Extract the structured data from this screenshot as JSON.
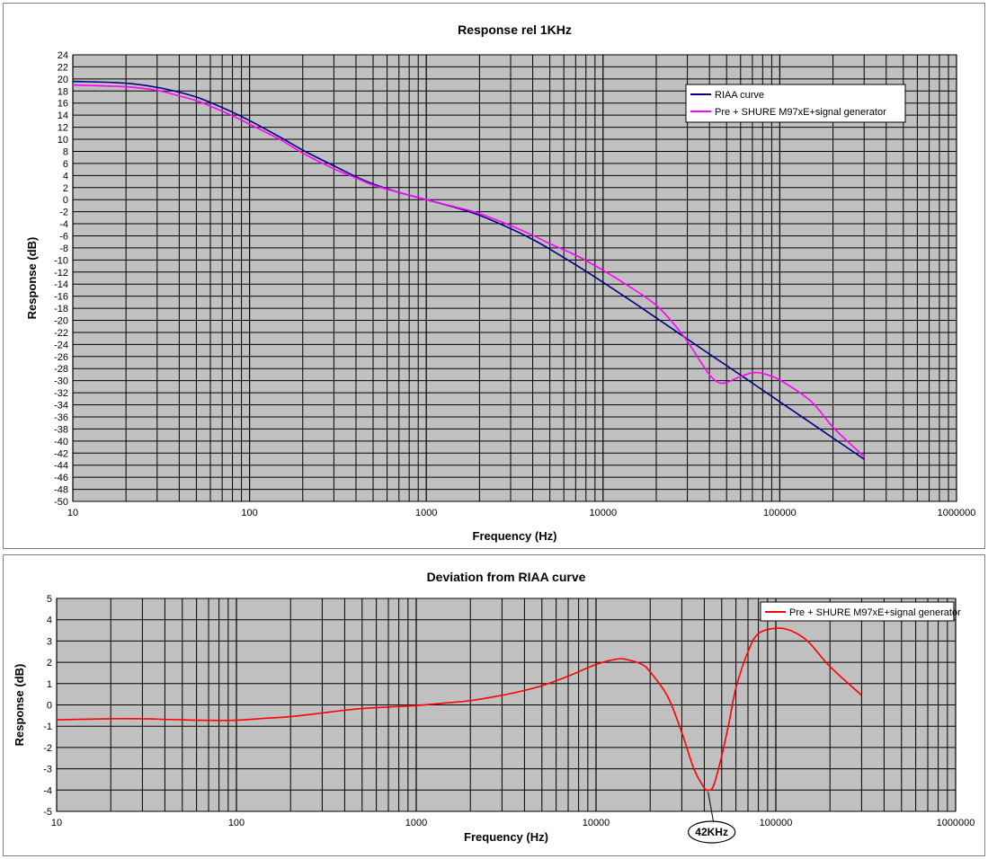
{
  "chart_data": [
    {
      "type": "line",
      "title": "Response rel 1KHz",
      "xlabel": "Frequency (Hz)",
      "ylabel": "Response (dB)",
      "xscale": "log",
      "xlim": [
        10,
        1000000
      ],
      "ylim": [
        -50,
        24
      ],
      "ystep": 2,
      "x_ticks": [
        10,
        100,
        1000,
        10000,
        100000,
        1000000
      ],
      "x_tick_labels": [
        "10",
        "100",
        "1000",
        "10000",
        "100000",
        "1000000"
      ],
      "grid": true,
      "legend_position": "top-right",
      "series": [
        {
          "name": "RIAA curve",
          "color": "#000080",
          "x": [
            10,
            20,
            30,
            40,
            50,
            60,
            80,
            100,
            150,
            200,
            300,
            400,
            500,
            700,
            1000,
            1500,
            2000,
            3000,
            4000,
            5000,
            7000,
            10000,
            15000,
            20000,
            30000,
            40000,
            50000,
            70000,
            100000,
            150000,
            200000,
            300000
          ],
          "y": [
            19.6,
            19.3,
            18.6,
            17.8,
            17.0,
            16.1,
            14.5,
            13.1,
            10.3,
            8.2,
            5.6,
            3.8,
            2.6,
            1.2,
            0.0,
            -1.4,
            -2.6,
            -4.8,
            -6.6,
            -8.2,
            -10.8,
            -13.7,
            -17.1,
            -19.6,
            -23.1,
            -25.6,
            -27.5,
            -30.4,
            -33.5,
            -37.0,
            -39.5,
            -43.0
          ]
        },
        {
          "name": "Pre + SHURE M97xE+signal generator",
          "color": "#ff00ff",
          "x": [
            10,
            20,
            30,
            40,
            50,
            60,
            80,
            100,
            150,
            200,
            300,
            400,
            500,
            700,
            1000,
            1500,
            2000,
            3000,
            4000,
            5000,
            7000,
            10000,
            15000,
            20000,
            25000,
            30000,
            35000,
            40000,
            45000,
            50000,
            60000,
            70000,
            80000,
            100000,
            150000,
            200000,
            300000
          ],
          "y": [
            19.0,
            18.7,
            18.1,
            17.2,
            16.4,
            15.5,
            13.9,
            12.5,
            9.9,
            7.7,
            5.1,
            3.6,
            2.4,
            1.2,
            0.0,
            -1.3,
            -2.3,
            -4.3,
            -5.9,
            -7.3,
            -9.2,
            -11.7,
            -14.9,
            -17.5,
            -20.5,
            -23.5,
            -26.5,
            -29.0,
            -30.3,
            -30.3,
            -29.3,
            -28.7,
            -28.8,
            -29.9,
            -33.4,
            -37.7,
            -42.6
          ]
        }
      ]
    },
    {
      "type": "line",
      "title": "Deviation from RIAA curve",
      "xlabel": "Frequency (Hz)",
      "ylabel": "Response (dB)",
      "xscale": "log",
      "xlim": [
        10,
        1000000
      ],
      "ylim": [
        -5,
        5
      ],
      "ystep": 1,
      "x_ticks": [
        10,
        100,
        1000,
        10000,
        100000,
        1000000
      ],
      "x_tick_labels": [
        "10",
        "100",
        "1000",
        "10000",
        "100000",
        "1000000"
      ],
      "grid": true,
      "legend_position": "top-right",
      "annotations": [
        {
          "text": "42KHz",
          "x": 42000,
          "y": -4.0
        }
      ],
      "series": [
        {
          "name": "Pre + SHURE M97xE+signal generator",
          "color": "#ff0000",
          "x": [
            10,
            20,
            30,
            40,
            50,
            60,
            80,
            100,
            150,
            200,
            300,
            400,
            500,
            700,
            1000,
            1500,
            2000,
            3000,
            4000,
            5000,
            7000,
            10000,
            13000,
            15000,
            18000,
            20000,
            25000,
            30000,
            35000,
            40000,
            42000,
            45000,
            50000,
            55000,
            60000,
            70000,
            80000,
            100000,
            120000,
            150000,
            200000,
            300000
          ],
          "y": [
            -0.7,
            -0.65,
            -0.65,
            -0.68,
            -0.7,
            -0.72,
            -0.73,
            -0.72,
            -0.62,
            -0.55,
            -0.38,
            -0.25,
            -0.17,
            -0.1,
            -0.03,
            0.1,
            0.2,
            0.45,
            0.68,
            0.9,
            1.35,
            1.9,
            2.15,
            2.12,
            1.9,
            1.55,
            0.4,
            -1.3,
            -3.0,
            -3.9,
            -4.0,
            -3.8,
            -2.4,
            -0.8,
            0.8,
            2.5,
            3.35,
            3.6,
            3.5,
            3.0,
            1.8,
            0.45
          ]
        }
      ]
    }
  ]
}
